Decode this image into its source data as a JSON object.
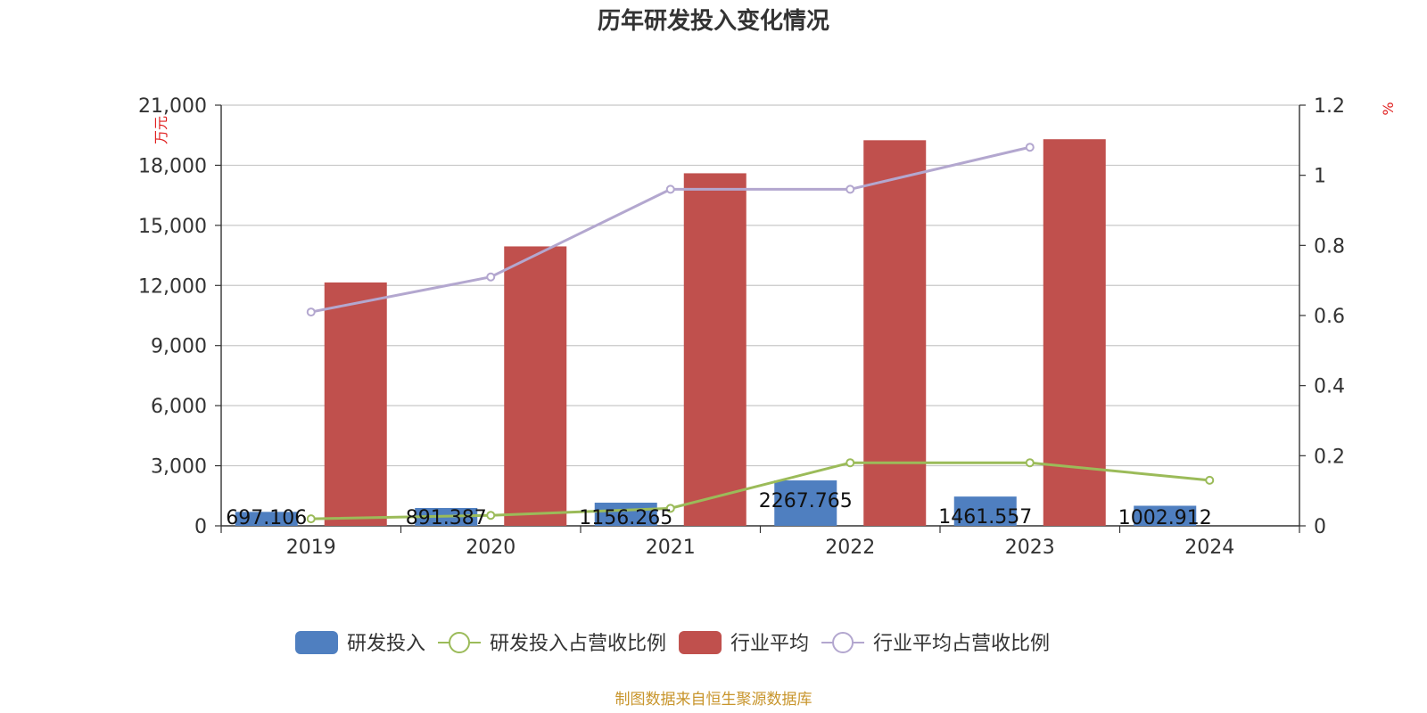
{
  "chart_data": {
    "type": "bar",
    "title": "历年研发投入变化情况",
    "categories": [
      "2019",
      "2020",
      "2021",
      "2022",
      "2023",
      "2024"
    ],
    "left_axis": {
      "unit": "万元",
      "ylim": [
        0,
        21000
      ],
      "ticks": [
        "0",
        "3,000",
        "6,000",
        "9,000",
        "12,000",
        "15,000",
        "18,000",
        "21,000"
      ]
    },
    "right_axis": {
      "unit": "%",
      "ylim": [
        0,
        1.2
      ],
      "ticks": [
        "0",
        "0.2",
        "0.4",
        "0.6",
        "0.8",
        "1",
        "1.2"
      ]
    },
    "series": [
      {
        "name": "研发投入",
        "kind": "bar",
        "axis": "left",
        "color": "#4f7fc0",
        "values": [
          697.106,
          891.387,
          1156.265,
          2267.765,
          1461.557,
          1002.912
        ],
        "labels": [
          "697.106",
          "891.387",
          "1156.265",
          "2267.765",
          "1461.557",
          "1002.912"
        ]
      },
      {
        "name": "研发投入占营收比例",
        "kind": "line",
        "axis": "right",
        "color": "#9bbb59",
        "values": [
          0.02,
          0.03,
          0.05,
          0.18,
          0.18,
          0.13
        ]
      },
      {
        "name": "行业平均",
        "kind": "bar",
        "axis": "left",
        "color": "#c0504d",
        "values": [
          12150,
          13950,
          17600,
          19250,
          19300,
          null
        ]
      },
      {
        "name": "行业平均占营收比例",
        "kind": "line",
        "axis": "right",
        "color": "#b3a7cf",
        "values": [
          0.61,
          0.71,
          0.96,
          0.96,
          1.08,
          null
        ]
      }
    ],
    "grid": true,
    "legend_position": "bottom"
  },
  "source": "制图数据来自恒生聚源数据库"
}
